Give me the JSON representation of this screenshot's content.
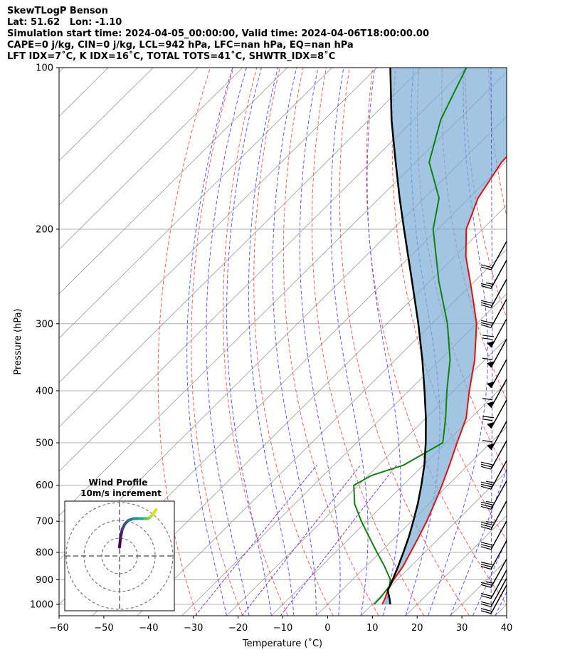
{
  "header": {
    "title": "SkewTLogP Benson",
    "location": "Lat: 51.62   Lon: -1.10",
    "times": "Simulation start time: 2024-04-05_00:00:00, Valid time: 2024-04-06T18:00:00.00",
    "indices1": "CAPE=0 j/kg, CIN=0 j/kg, LCL=942 hPa, LFC=nan hPa, EQ=nan hPa",
    "indices2": "LFT IDX=7˚C, K IDX=16˚C, TOTAL TOTS=41˚C, SHWTR_IDX=8˚C"
  },
  "chart_data": [
    {
      "type": "line",
      "title": "SkewTLogP Benson",
      "xlabel": "Temperature (˚C)",
      "ylabel": "Pressure (hPa)",
      "xlim": [
        -60,
        40
      ],
      "ylim": [
        1050,
        100
      ],
      "yscale": "log",
      "skew_deg_per_decade": 121,
      "x_ticks": [
        "−60",
        "−50",
        "−40",
        "−30",
        "−20",
        "−10",
        "0",
        "10",
        "20",
        "30",
        "40"
      ],
      "x_tick_values": [
        -60,
        -50,
        -40,
        -30,
        -20,
        -10,
        0,
        10,
        20,
        30,
        40
      ],
      "y_ticks": [
        "1000",
        "900",
        "800",
        "700",
        "600",
        "500",
        "400",
        "300",
        "200",
        "100"
      ],
      "y_tick_values": [
        1000,
        900,
        800,
        700,
        600,
        500,
        400,
        300,
        200,
        100
      ],
      "series": [
        {
          "name": "Temperature",
          "color": "#e31010",
          "points": [
            [
              1000,
              12.2
            ],
            [
              975,
              11.5
            ],
            [
              950,
              10.6
            ],
            [
              925,
              9.8
            ],
            [
              900,
              9.2
            ],
            [
              850,
              8.3
            ],
            [
              800,
              6.8
            ],
            [
              750,
              5.2
            ],
            [
              700,
              3.4
            ],
            [
              650,
              1.2
            ],
            [
              600,
              -1.3
            ],
            [
              550,
              -4.2
            ],
            [
              500,
              -7.5
            ],
            [
              450,
              -11.0
            ],
            [
              400,
              -16.5
            ],
            [
              350,
              -22.3
            ],
            [
              300,
              -30.0
            ],
            [
              275,
              -35.2
            ],
            [
              250,
              -41.0
            ],
            [
              225,
              -47.5
            ],
            [
              200,
              -53.6
            ],
            [
              175,
              -58.0
            ],
            [
              150,
              -60.8
            ],
            [
              125,
              -61.5
            ],
            [
              110,
              -60.5
            ],
            [
              100,
              -62.0
            ]
          ]
        },
        {
          "name": "Dewpoint",
          "color": "#108010",
          "points": [
            [
              1000,
              10.4
            ],
            [
              975,
              10.3
            ],
            [
              950,
              10.0
            ],
            [
              925,
              9.7
            ],
            [
              900,
              8.5
            ],
            [
              850,
              4.2
            ],
            [
              800,
              -0.7
            ],
            [
              750,
              -5.8
            ],
            [
              700,
              -11.2
            ],
            [
              650,
              -16.6
            ],
            [
              600,
              -21.0
            ],
            [
              575,
              -19.2
            ],
            [
              550,
              -14.4
            ],
            [
              500,
              -10.7
            ],
            [
              450,
              -15.6
            ],
            [
              400,
              -21.5
            ],
            [
              350,
              -27.8
            ],
            [
              300,
              -36.5
            ],
            [
              250,
              -48.0
            ],
            [
              200,
              -61.0
            ],
            [
              175,
              -66.7
            ],
            [
              150,
              -77.0
            ],
            [
              125,
              -84.0
            ],
            [
              100,
              -90.0
            ]
          ]
        },
        {
          "name": "Parcel",
          "color": "#000000",
          "points": [
            [
              1000,
              14.0
            ],
            [
              975,
              12.5
            ],
            [
              942,
              10.3
            ],
            [
              900,
              9.0
            ],
            [
              850,
              7.2
            ],
            [
              800,
              5.2
            ],
            [
              750,
              3.0
            ],
            [
              700,
              0.4
            ],
            [
              650,
              -2.5
            ],
            [
              600,
              -5.9
            ],
            [
              550,
              -9.8
            ],
            [
              500,
              -14.5
            ],
            [
              450,
              -20.0
            ],
            [
              400,
              -26.5
            ],
            [
              350,
              -34.0
            ],
            [
              300,
              -43.0
            ],
            [
              250,
              -54.0
            ],
            [
              200,
              -67.5
            ],
            [
              175,
              -75.5
            ],
            [
              150,
              -84.5
            ],
            [
              125,
              -95.0
            ],
            [
              100,
              -107.0
            ]
          ]
        }
      ],
      "wind_barbs": [
        {
          "p": 1040,
          "barbs": "2"
        },
        {
          "p": 1010,
          "barbs": "2"
        },
        {
          "p": 975,
          "barbs": "2"
        },
        {
          "p": 930,
          "barbs": "2.5"
        },
        {
          "p": 860,
          "barbs": "3"
        },
        {
          "p": 790,
          "barbs": "3"
        },
        {
          "p": 725,
          "barbs": "3.5"
        },
        {
          "p": 665,
          "barbs": "3.5"
        },
        {
          "p": 610,
          "barbs": "3.5"
        },
        {
          "p": 560,
          "barbs": "3"
        },
        {
          "p": 515,
          "barbs": "pennant+1"
        },
        {
          "p": 470,
          "barbs": "pennant+2"
        },
        {
          "p": 430,
          "barbs": "pennant+1"
        },
        {
          "p": 395,
          "barbs": "pennant"
        },
        {
          "p": 362,
          "barbs": "pennant+1"
        },
        {
          "p": 332,
          "barbs": "pennant+2"
        },
        {
          "p": 305,
          "barbs": "3"
        },
        {
          "p": 280,
          "barbs": "3"
        },
        {
          "p": 258,
          "barbs": "2.5"
        },
        {
          "p": 238,
          "barbs": "2"
        }
      ]
    },
    {
      "type": "line",
      "title": "Wind Profile",
      "subtitle": "10m/s increment",
      "rings_ms": [
        10,
        20,
        30
      ],
      "hodograph_points": [
        [
          0,
          5
        ],
        [
          0.5,
          10
        ],
        [
          1.5,
          15
        ],
        [
          3,
          18
        ],
        [
          5,
          20
        ],
        [
          8,
          21
        ],
        [
          11,
          21
        ],
        [
          14,
          21
        ],
        [
          16,
          21
        ],
        [
          17.5,
          22
        ],
        [
          19,
          24
        ],
        [
          20.5,
          26
        ]
      ]
    }
  ]
}
